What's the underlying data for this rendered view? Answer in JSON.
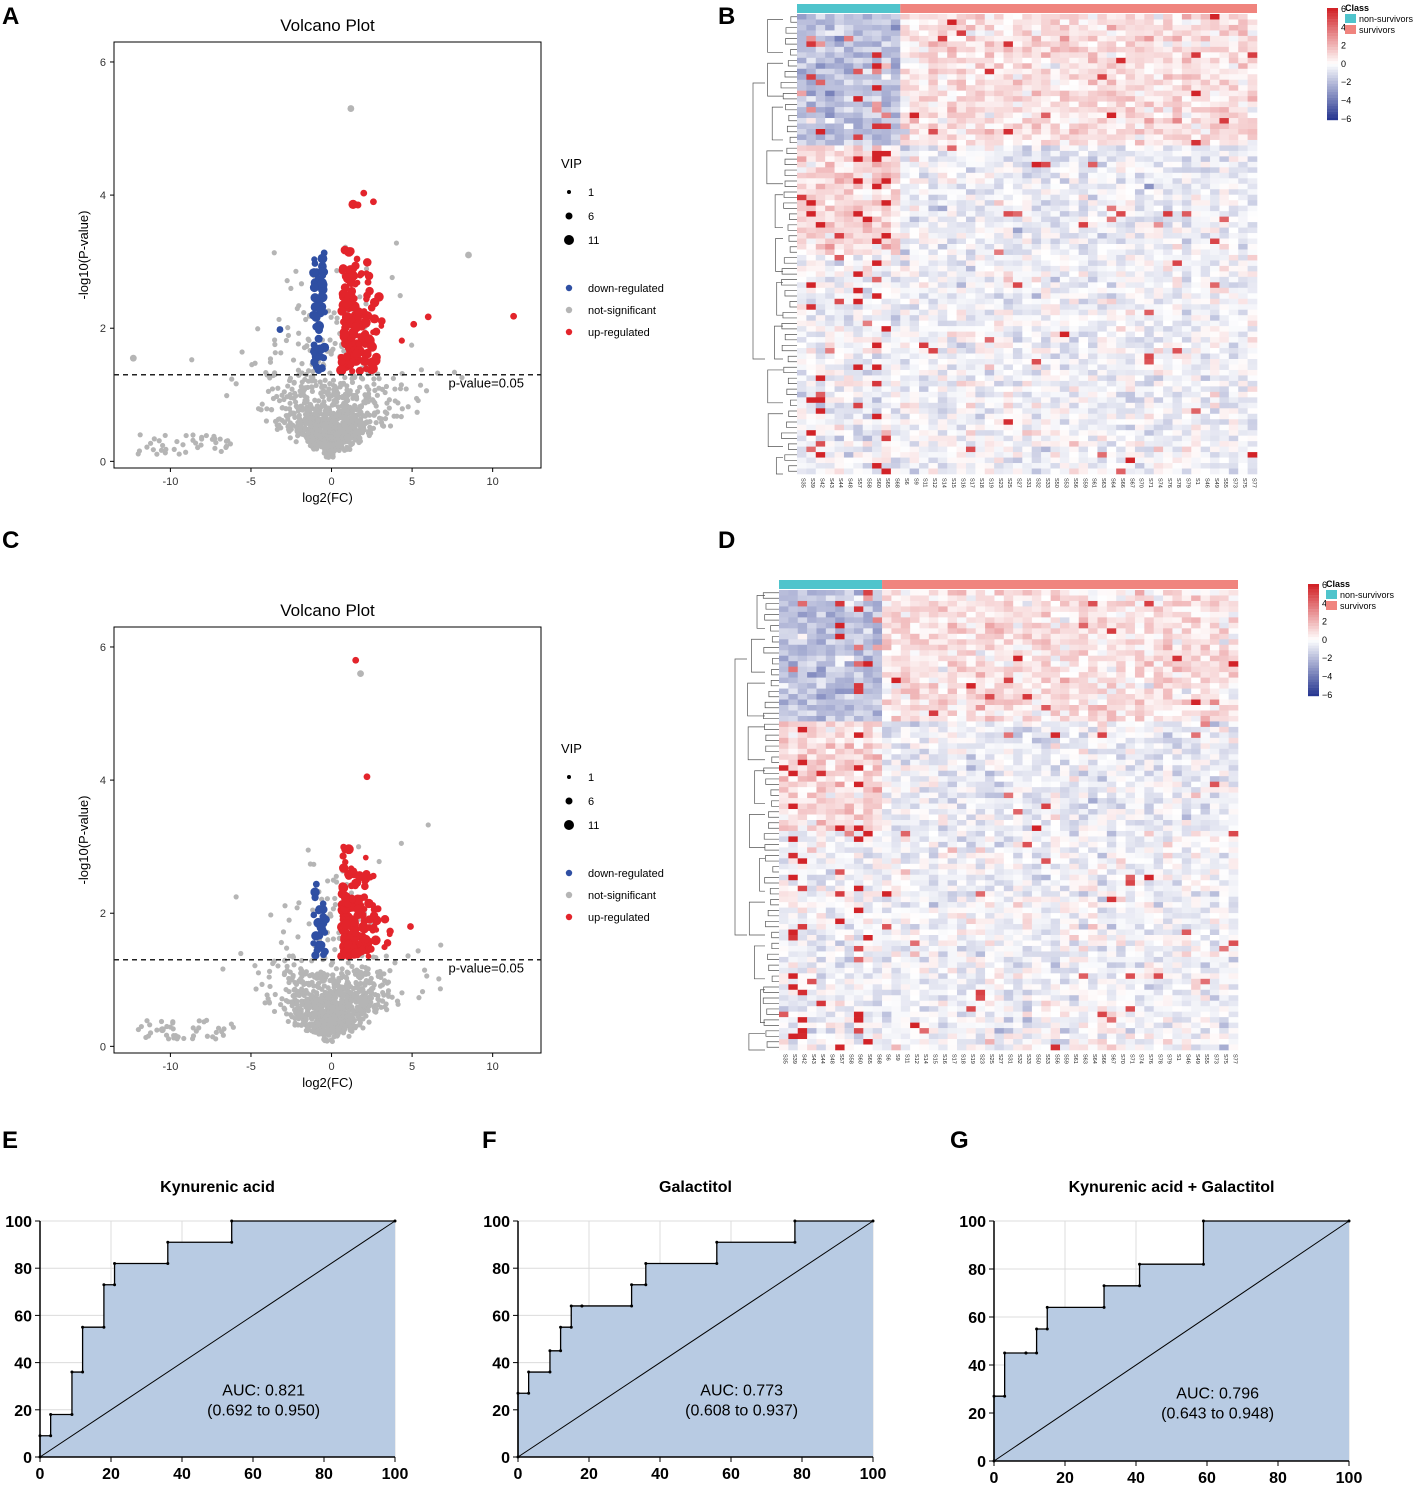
{
  "panels": {
    "A": "A",
    "B": "B",
    "C": "C",
    "D": "D",
    "E": "E",
    "F": "F",
    "G": "G"
  },
  "colors": {
    "down": "#2f4fa3",
    "notsig": "#b5b5b5",
    "up": "#e3242b",
    "nonsurv": "#4fc4cc",
    "surv": "#f0847e",
    "roc_fill": "#b8cbe3",
    "roc_line": "#000000"
  },
  "chart_data": [
    {
      "id": "A",
      "type": "scatter",
      "title": "Volcano Plot",
      "xlabel": "log2(FC)",
      "ylabel": "-log10(P-value)",
      "xlim": [
        -13.5,
        13
      ],
      "ylim": [
        -0.1,
        6.3
      ],
      "xticks": [
        -10,
        -5,
        0,
        5,
        10
      ],
      "yticks": [
        0,
        2,
        4,
        6
      ],
      "threshold": 1.301,
      "threshold_label": "p-value=0.05",
      "legend": {
        "vip_title": "VIP",
        "vip_sizes": [
          "1",
          "6",
          "11"
        ],
        "classes": [
          "down-regulated",
          "not-significant",
          "up-regulated"
        ]
      },
      "highlight_points": [
        {
          "x": -3.2,
          "y": 1.98,
          "class": "down"
        },
        {
          "x": 11.3,
          "y": 2.18,
          "class": "up"
        },
        {
          "x": 6.0,
          "y": 2.17,
          "class": "up"
        },
        {
          "x": 5.1,
          "y": 2.06,
          "class": "up"
        },
        {
          "x": 2.0,
          "y": 4.03,
          "class": "up"
        },
        {
          "x": 2.6,
          "y": 3.9,
          "class": "up"
        },
        {
          "x": 1.2,
          "y": 5.3,
          "class": "notsig"
        },
        {
          "x": -12.3,
          "y": 1.55,
          "class": "notsig"
        },
        {
          "x": 8.5,
          "y": 3.1,
          "class": "notsig"
        }
      ]
    },
    {
      "id": "C",
      "type": "scatter",
      "title": "Volcano Plot",
      "xlabel": "log2(FC)",
      "ylabel": "-log10(P-value)",
      "xlim": [
        -13.5,
        13
      ],
      "ylim": [
        -0.1,
        6.3
      ],
      "xticks": [
        -10,
        -5,
        0,
        5,
        10
      ],
      "yticks": [
        0,
        2,
        4,
        6
      ],
      "threshold": 1.301,
      "threshold_label": "p-value=0.05",
      "legend": {
        "vip_title": "VIP",
        "vip_sizes": [
          "1",
          "6",
          "11"
        ],
        "classes": [
          "down-regulated",
          "not-significant",
          "up-regulated"
        ]
      },
      "highlight_points": [
        {
          "x": 1.5,
          "y": 5.8,
          "class": "up"
        },
        {
          "x": 1.8,
          "y": 5.6,
          "class": "notsig"
        },
        {
          "x": 2.2,
          "y": 4.05,
          "class": "up"
        },
        {
          "x": 4.9,
          "y": 1.8,
          "class": "up"
        },
        {
          "x": -10.5,
          "y": 0.25,
          "class": "notsig"
        }
      ]
    },
    {
      "id": "B",
      "type": "heatmap",
      "legend_title": "Class",
      "legend_classes": [
        "non-survivors",
        "survivors"
      ],
      "color_scale_ticks": [
        "6",
        "4",
        "2",
        "0",
        "−2",
        "−4",
        "−6"
      ],
      "n_nonsurvivors": 11,
      "columns": [
        "S35",
        "S39",
        "S42",
        "S43",
        "S44",
        "S48",
        "S57",
        "S58",
        "S60",
        "S65",
        "S68",
        "S6",
        "S9",
        "S11",
        "S12",
        "S14",
        "S15",
        "S16",
        "S17",
        "S18",
        "S19",
        "S23",
        "S25",
        "S27",
        "S31",
        "S32",
        "S33",
        "S50",
        "S53",
        "S56",
        "S59",
        "S61",
        "S63",
        "S64",
        "S66",
        "S67",
        "S70",
        "S71",
        "S74",
        "S76",
        "S78",
        "S79",
        "S1",
        "S46",
        "S49",
        "S55",
        "S73",
        "S75",
        "S77"
      ]
    },
    {
      "id": "D",
      "type": "heatmap",
      "legend_title": "Class",
      "legend_classes": [
        "non-survivors",
        "survivors"
      ],
      "color_scale_ticks": [
        "6",
        "4",
        "2",
        "0",
        "−2",
        "−4",
        "−6"
      ],
      "n_nonsurvivors": 11,
      "columns": [
        "S35",
        "S39",
        "S42",
        "S43",
        "S44",
        "S48",
        "S57",
        "S58",
        "S60",
        "S65",
        "S68",
        "S6",
        "S9",
        "S11",
        "S12",
        "S14",
        "S15",
        "S16",
        "S17",
        "S18",
        "S19",
        "S23",
        "S25",
        "S27",
        "S31",
        "S32",
        "S33",
        "S50",
        "S53",
        "S56",
        "S59",
        "S61",
        "S63",
        "S64",
        "S66",
        "S67",
        "S70",
        "S71",
        "S74",
        "S76",
        "S78",
        "S79",
        "S1",
        "S46",
        "S49",
        "S55",
        "S73",
        "S75",
        "S77"
      ]
    },
    {
      "id": "E",
      "type": "line",
      "title": "Kynurenic acid",
      "auc": "AUC: 0.821",
      "ci": "(0.692 to 0.950)",
      "xlim": [
        0,
        100
      ],
      "ylim": [
        0,
        100
      ],
      "ticks": [
        "0",
        "20",
        "40",
        "60",
        "80",
        "100"
      ],
      "x": [
        0,
        0,
        3,
        3,
        9,
        9,
        12,
        12,
        18,
        18,
        21,
        21,
        36,
        36,
        54,
        54,
        100
      ],
      "y": [
        0,
        9,
        9,
        18,
        18,
        36,
        36,
        55,
        55,
        73,
        73,
        82,
        82,
        91,
        91,
        100,
        100
      ]
    },
    {
      "id": "F",
      "type": "line",
      "title": "Galactitol",
      "auc": "AUC: 0.773",
      "ci": "(0.608 to 0.937)",
      "xlim": [
        0,
        100
      ],
      "ylim": [
        0,
        100
      ],
      "ticks": [
        "0",
        "20",
        "40",
        "60",
        "80",
        "100"
      ],
      "x": [
        0,
        0,
        3,
        3,
        9,
        9,
        12,
        12,
        15,
        15,
        18,
        18,
        32,
        32,
        36,
        36,
        56,
        56,
        78,
        78,
        100
      ],
      "y": [
        0,
        27,
        27,
        36,
        36,
        45,
        45,
        55,
        55,
        64,
        64,
        64,
        64,
        73,
        73,
        82,
        82,
        91,
        91,
        100,
        100
      ]
    },
    {
      "id": "G",
      "type": "line",
      "title": "Kynurenic acid + Galactitol",
      "auc": "AUC: 0.796",
      "ci": "(0.643 to 0.948)",
      "xlim": [
        0,
        100
      ],
      "ylim": [
        0,
        100
      ],
      "ticks": [
        "0",
        "20",
        "40",
        "60",
        "80",
        "100"
      ],
      "x": [
        0,
        0,
        3,
        3,
        9,
        9,
        12,
        12,
        15,
        15,
        31,
        31,
        41,
        41,
        59,
        59,
        100
      ],
      "y": [
        0,
        27,
        27,
        45,
        45,
        45,
        45,
        55,
        55,
        64,
        64,
        73,
        73,
        82,
        82,
        100,
        100
      ]
    }
  ]
}
